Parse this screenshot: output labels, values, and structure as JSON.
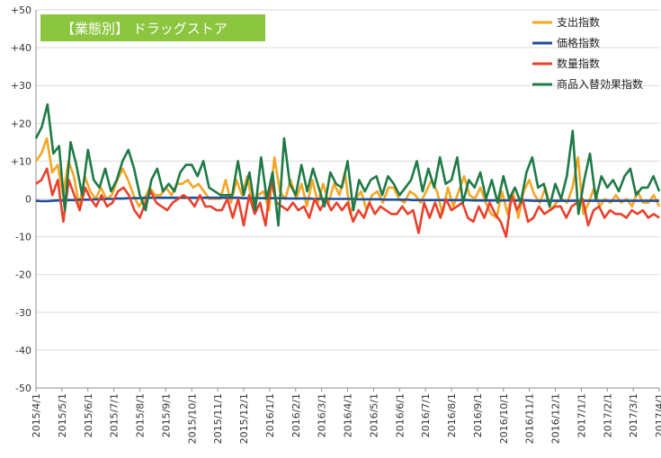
{
  "chart_data": {
    "type": "line",
    "title": "【業態別】 ドラッグストア",
    "title_box_color": "#8CC63F",
    "ylim": [
      -50,
      50
    ],
    "yticks": [
      "+50",
      "+40",
      "+30",
      "+20",
      "+10",
      "0",
      "-10",
      "-20",
      "-30",
      "-40",
      "-50"
    ],
    "x_tick_labels": [
      "2015/4/1",
      "2015/5/1",
      "2015/6/1",
      "2015/7/1",
      "2015/8/1",
      "2015/9/1",
      "2015/10/1",
      "2015/11/1",
      "2015/12/1",
      "2016/1/1",
      "2016/2/1",
      "2016/3/1",
      "2016/4/1",
      "2016/5/1",
      "2016/6/1",
      "2016/7/1",
      "2016/8/1",
      "2016/9/1",
      "2016/10/1",
      "2016/11/1",
      "2016/12/1",
      "2017/1/1",
      "2017/2/1",
      "2017/3/1",
      "2017/4/1"
    ],
    "grid": true,
    "legend_position": "top-right",
    "series": [
      {
        "name": "支出指数",
        "color": "#F5A623",
        "values": [
          10,
          12,
          16,
          7,
          9,
          1,
          10,
          6,
          -2,
          6,
          2,
          0,
          3,
          0,
          1,
          5,
          8,
          5,
          1,
          -2,
          0,
          3,
          1,
          1,
          3,
          1,
          4,
          4,
          5,
          3,
          4,
          2,
          0,
          0,
          0,
          5,
          -1,
          5,
          1,
          6,
          -2,
          1,
          2,
          -3,
          11,
          2,
          0,
          5,
          0,
          4,
          -2,
          5,
          -1,
          4,
          -1,
          4,
          1,
          7,
          -4,
          0,
          2,
          -3,
          1,
          2,
          -1,
          3,
          3,
          0,
          -1,
          2,
          1,
          -1,
          2,
          5,
          2,
          -4,
          3,
          -2,
          2,
          6,
          1,
          0,
          3,
          -1,
          -4,
          -5,
          2,
          -4,
          2,
          -5,
          2,
          5,
          1,
          -1,
          3,
          -3,
          -1,
          0,
          -1,
          3,
          11,
          -4,
          -1,
          3,
          -2,
          0,
          -1,
          1,
          -1,
          0,
          -2,
          2,
          -1,
          -1,
          1,
          -2
        ]
      },
      {
        "name": "価格指数",
        "color": "#1F4E9A",
        "values": [
          -0.5,
          -0.6,
          -0.6,
          -0.5,
          -0.4,
          -0.4,
          -0.3,
          -0.3,
          -0.2,
          -0.2,
          -0.2,
          -0.1,
          -0.1,
          0,
          0,
          0.1,
          0.1,
          0.2,
          0.2,
          0.2,
          0.3,
          0.3,
          0.3,
          0.3,
          0.3,
          0.3,
          0.3,
          0.3,
          0.3,
          0.3,
          0.3,
          0.3,
          0.3,
          0.3,
          0.3,
          0.3,
          0.3,
          0.3,
          0.2,
          0.2,
          0.2,
          0.2,
          0.2,
          0.2,
          0.2,
          0.2,
          0.1,
          0.1,
          0.1,
          0.1,
          0.1,
          0,
          0,
          0,
          0,
          0,
          0,
          0,
          0,
          -0.1,
          -0.1,
          -0.1,
          -0.1,
          -0.1,
          -0.2,
          -0.2,
          -0.2,
          -0.2,
          -0.2,
          -0.3,
          -0.3,
          -0.3,
          -0.3,
          -0.3,
          -0.3,
          -0.3,
          -0.3,
          -0.3,
          -0.3,
          -0.3,
          -0.4,
          -0.4,
          -0.4,
          -0.4,
          -0.4,
          -0.4,
          -0.4,
          -0.4,
          -0.4,
          -0.4,
          -0.4,
          -0.5,
          -0.5,
          -0.5,
          -0.5,
          -0.5,
          -0.5,
          -0.5,
          -0.5,
          -0.5,
          -0.5,
          -0.5,
          -0.5,
          -0.5,
          -0.5,
          -0.5,
          -0.5,
          -0.5,
          -0.5,
          -0.5,
          -0.5,
          -0.5,
          -0.5,
          -0.5,
          -0.5
        ]
      },
      {
        "name": "数量指数",
        "color": "#E8412C",
        "values": [
          4,
          5,
          8,
          1,
          5,
          -6,
          5,
          1,
          -3,
          3,
          0,
          -2,
          1,
          -2,
          -1,
          2,
          3,
          1,
          -3,
          -5,
          -1,
          2,
          -1,
          -2,
          -3,
          -1,
          0,
          1,
          0,
          -2,
          1,
          -2,
          -2,
          -3,
          -3,
          0,
          -5,
          0,
          -7,
          1,
          -4,
          -1,
          -7,
          5,
          -1,
          -2,
          -3,
          -1,
          -3,
          -2,
          -5,
          0,
          -3,
          0,
          -3,
          -1,
          -3,
          -1,
          -6,
          -3,
          -5,
          -1,
          -4,
          -2,
          -3,
          -4,
          -4,
          -2,
          -4,
          -3,
          -9,
          -1,
          -5,
          -1,
          -5,
          0,
          -3,
          -2,
          -1,
          -5,
          -6,
          -2,
          -5,
          -1,
          -4,
          -6,
          -10,
          1,
          -3,
          0,
          -6,
          -5,
          -2,
          -4,
          -3,
          -2,
          -2,
          -5,
          -2,
          -1,
          0,
          -7,
          -3,
          -2,
          -5,
          -3,
          -4,
          -4,
          -5,
          -3,
          -4,
          -3,
          -5,
          -4,
          -5
        ]
      },
      {
        "name": "商品入替効果指数",
        "color": "#1E7A46",
        "values": [
          16,
          19,
          25,
          12,
          14,
          -3,
          15,
          9,
          1,
          13,
          5,
          3,
          8,
          2,
          5,
          10,
          13,
          8,
          1,
          -3,
          5,
          8,
          2,
          4,
          2,
          7,
          9,
          9,
          6,
          10,
          3,
          2,
          1,
          1,
          1,
          10,
          1,
          7,
          -3,
          11,
          0,
          7,
          -7,
          16,
          4,
          1,
          9,
          2,
          8,
          3,
          -2,
          7,
          4,
          3,
          10,
          -3,
          5,
          2,
          5,
          6,
          1,
          6,
          4,
          1,
          3,
          5,
          10,
          2,
          8,
          3,
          11,
          4,
          5,
          11,
          -1,
          5,
          3,
          7,
          0,
          5,
          -1,
          6,
          0,
          3,
          -1,
          7,
          11,
          3,
          4,
          -2,
          4,
          0,
          6,
          18,
          -4,
          5,
          12,
          0,
          6,
          3,
          5,
          2,
          6,
          8,
          1,
          3,
          3,
          6,
          2
        ]
      }
    ]
  }
}
